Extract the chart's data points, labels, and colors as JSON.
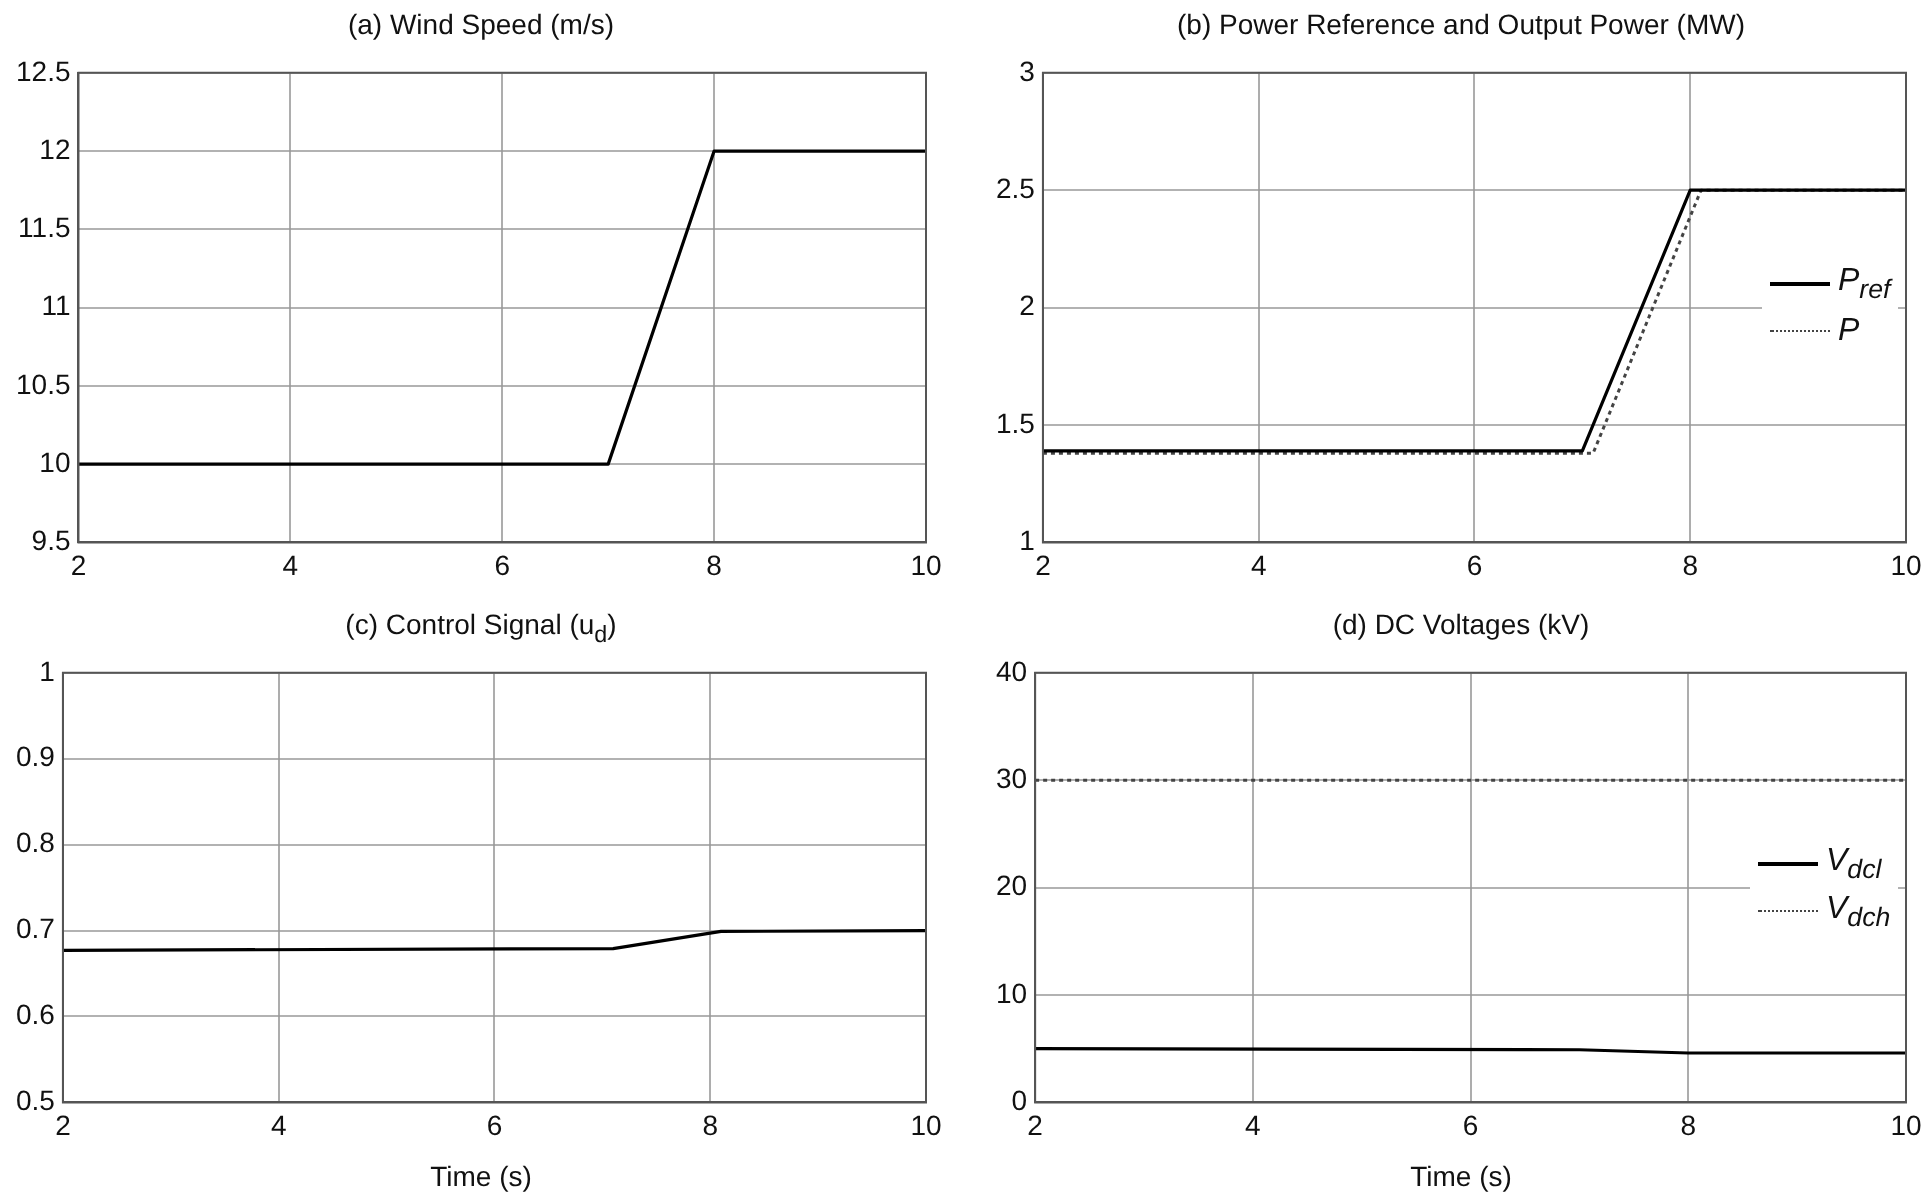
{
  "chart_data": [
    {
      "type": "line",
      "title": "(a) Wind Speed (m/s)",
      "x": [
        2,
        7,
        8,
        10
      ],
      "series": [
        {
          "color": "#000000",
          "values": [
            10,
            10,
            12,
            12
          ]
        }
      ],
      "xlim": [
        2,
        10
      ],
      "xticks": [
        2,
        4,
        6,
        8,
        10
      ],
      "ylim": [
        9.5,
        12.5
      ],
      "yticks": [
        9.5,
        10,
        10.5,
        11,
        11.5,
        12,
        12.5
      ],
      "grid": true,
      "line_style": "solid",
      "marker": "none"
    },
    {
      "type": "line",
      "title": "(b) Power Reference and Output Power (MW)",
      "series": [
        {
          "name": "P$_{ref}$",
          "color": "#000000",
          "x": [
            2,
            7,
            8,
            10
          ],
          "values": [
            1.39,
            1.39,
            2.5,
            2.5
          ],
          "line_style": "solid"
        },
        {
          "name": "P",
          "color": "#444444",
          "x": [
            2,
            7.1,
            8.1,
            10
          ],
          "values": [
            1.38,
            1.38,
            2.5,
            2.5
          ],
          "line_style": "dotted"
        }
      ],
      "xlim": [
        2,
        10
      ],
      "xticks": [
        2,
        4,
        6,
        8,
        10
      ],
      "ylim": [
        1,
        3
      ],
      "yticks": [
        1,
        1.5,
        2,
        2.5,
        3
      ],
      "grid": true,
      "legend": "right",
      "marker": "none"
    },
    {
      "type": "line",
      "title": "(c) Control Signal (u$_{d}$)",
      "xlabel": "Time (s)",
      "x": [
        2,
        7.1,
        8.1,
        10
      ],
      "series": [
        {
          "color": "#000000",
          "values": [
            0.677,
            0.679,
            0.699,
            0.7
          ]
        }
      ],
      "xlim": [
        2,
        10
      ],
      "xticks": [
        2,
        4,
        6,
        8,
        10
      ],
      "ylim": [
        0.5,
        1
      ],
      "yticks": [
        0.5,
        0.6,
        0.7,
        0.8,
        0.9,
        1
      ],
      "grid": true,
      "line_style": "solid",
      "marker": "none"
    },
    {
      "type": "line",
      "title": "(d) DC Voltages (kV)",
      "xlabel": "Time (s)",
      "x": [
        2,
        7,
        8,
        10
      ],
      "series": [
        {
          "name": "V$_{dcl}$",
          "color": "#000000",
          "values": [
            5,
            4.9,
            4.6,
            4.6
          ],
          "line_style": "solid"
        },
        {
          "name": "V$_{dch}$",
          "color": "#444444",
          "values": [
            30,
            30,
            30,
            30
          ],
          "line_style": "dotted"
        }
      ],
      "xlim": [
        2,
        10
      ],
      "xticks": [
        2,
        4,
        6,
        8,
        10
      ],
      "ylim": [
        0,
        40
      ],
      "yticks": [
        0,
        10,
        20,
        30,
        40
      ],
      "grid": true,
      "legend": "right",
      "marker": "none"
    }
  ]
}
